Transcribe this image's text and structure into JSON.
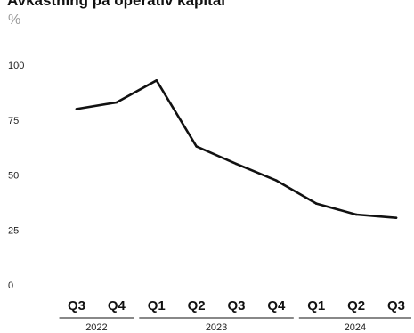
{
  "chart_data": {
    "type": "line",
    "title": "Avkastning på operativ kapital",
    "unit_label": "%",
    "ylim": [
      0,
      100
    ],
    "y_ticks": [
      "0",
      "25",
      "50",
      "75",
      "100"
    ],
    "categories": [
      "Q3",
      "Q4",
      "Q1",
      "Q2",
      "Q3",
      "Q4",
      "Q1",
      "Q2",
      "Q3"
    ],
    "year_groups": [
      {
        "label": "2022",
        "count": 2
      },
      {
        "label": "2023",
        "count": 4
      },
      {
        "label": "2024",
        "count": 3
      }
    ],
    "series": [
      {
        "values": [
          80,
          83,
          93,
          63,
          55,
          47.5,
          37,
          32,
          30.5
        ],
        "color": "#111111"
      }
    ],
    "grid": false
  }
}
